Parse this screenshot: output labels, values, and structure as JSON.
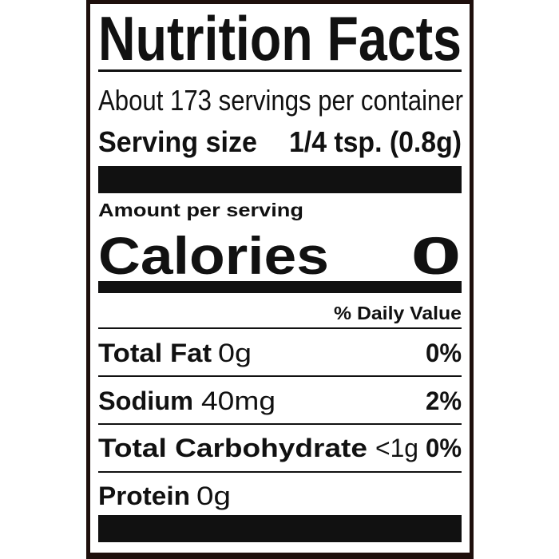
{
  "label": {
    "title": "Nutrition Facts",
    "servings_per_container": "About 173 servings per container",
    "serving_size_label": "Serving size",
    "serving_size_value": "1/4 tsp. (0.8g)",
    "amount_per_serving": "Amount per serving",
    "calories_label": "Calories",
    "calories_value": "0",
    "daily_value_header": "% Daily Value",
    "nutrients": [
      {
        "name": "Total Fat",
        "amount": "0g",
        "dv": "0%"
      },
      {
        "name": "Sodium",
        "amount": "40mg",
        "dv": "2%"
      },
      {
        "name": "Total Carbohydrate",
        "amount": "<1g",
        "dv": "0%"
      },
      {
        "name": "Protein",
        "amount": "0g"
      }
    ]
  },
  "colors": {
    "frame": "#1e0f0c",
    "ink": "#111111",
    "paper": "#ffffff"
  }
}
